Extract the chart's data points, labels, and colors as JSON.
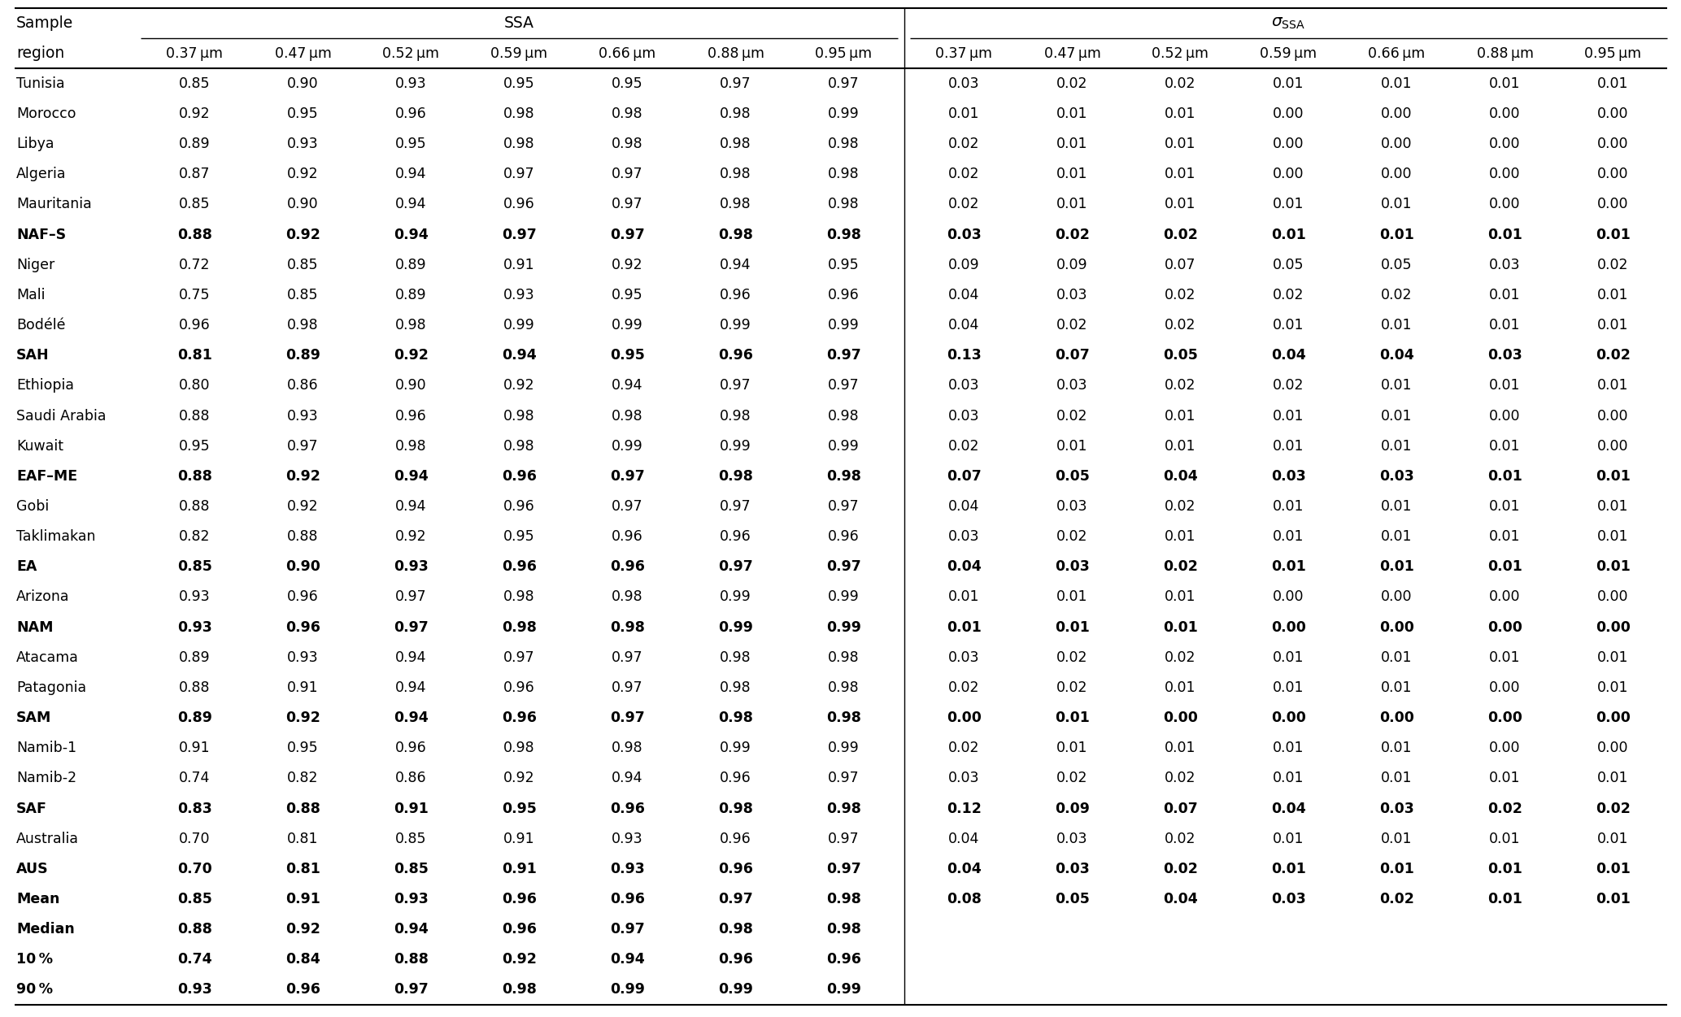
{
  "col_headers_ssa": [
    "0.37 μm",
    "0.47 μm",
    "0.52 μm",
    "0.59 μm",
    "0.66 μm",
    "0.88 μm",
    "0.95 μm"
  ],
  "col_headers_sigma": [
    "0.37 μm",
    "0.47 μm",
    "0.52 μm",
    "0.59 μm",
    "0.66 μm",
    "0.88 μm",
    "0.95 μm"
  ],
  "rows": [
    {
      "region": "Tunisia",
      "bold": false,
      "ssa": [
        0.85,
        0.9,
        0.93,
        0.95,
        0.95,
        0.97,
        0.97
      ],
      "sigma": [
        0.03,
        0.02,
        0.02,
        0.01,
        0.01,
        0.01,
        0.01
      ]
    },
    {
      "region": "Morocco",
      "bold": false,
      "ssa": [
        0.92,
        0.95,
        0.96,
        0.98,
        0.98,
        0.98,
        0.99
      ],
      "sigma": [
        0.01,
        0.01,
        0.01,
        0.0,
        0.0,
        0.0,
        0.0
      ]
    },
    {
      "region": "Libya",
      "bold": false,
      "ssa": [
        0.89,
        0.93,
        0.95,
        0.98,
        0.98,
        0.98,
        0.98
      ],
      "sigma": [
        0.02,
        0.01,
        0.01,
        0.0,
        0.0,
        0.0,
        0.0
      ]
    },
    {
      "region": "Algeria",
      "bold": false,
      "ssa": [
        0.87,
        0.92,
        0.94,
        0.97,
        0.97,
        0.98,
        0.98
      ],
      "sigma": [
        0.02,
        0.01,
        0.01,
        0.0,
        0.0,
        0.0,
        0.0
      ]
    },
    {
      "region": "Mauritania",
      "bold": false,
      "ssa": [
        0.85,
        0.9,
        0.94,
        0.96,
        0.97,
        0.98,
        0.98
      ],
      "sigma": [
        0.02,
        0.01,
        0.01,
        0.01,
        0.01,
        0.0,
        0.0
      ]
    },
    {
      "region": "NAF–S",
      "bold": true,
      "ssa": [
        0.88,
        0.92,
        0.94,
        0.97,
        0.97,
        0.98,
        0.98
      ],
      "sigma": [
        0.03,
        0.02,
        0.02,
        0.01,
        0.01,
        0.01,
        0.01
      ]
    },
    {
      "region": "Niger",
      "bold": false,
      "ssa": [
        0.72,
        0.85,
        0.89,
        0.91,
        0.92,
        0.94,
        0.95
      ],
      "sigma": [
        0.09,
        0.09,
        0.07,
        0.05,
        0.05,
        0.03,
        0.02
      ]
    },
    {
      "region": "Mali",
      "bold": false,
      "ssa": [
        0.75,
        0.85,
        0.89,
        0.93,
        0.95,
        0.96,
        0.96
      ],
      "sigma": [
        0.04,
        0.03,
        0.02,
        0.02,
        0.02,
        0.01,
        0.01
      ]
    },
    {
      "region": "Bodélé",
      "bold": false,
      "ssa": [
        0.96,
        0.98,
        0.98,
        0.99,
        0.99,
        0.99,
        0.99
      ],
      "sigma": [
        0.04,
        0.02,
        0.02,
        0.01,
        0.01,
        0.01,
        0.01
      ]
    },
    {
      "region": "SAH",
      "bold": true,
      "ssa": [
        0.81,
        0.89,
        0.92,
        0.94,
        0.95,
        0.96,
        0.97
      ],
      "sigma": [
        0.13,
        0.07,
        0.05,
        0.04,
        0.04,
        0.03,
        0.02
      ]
    },
    {
      "region": "Ethiopia",
      "bold": false,
      "ssa": [
        0.8,
        0.86,
        0.9,
        0.92,
        0.94,
        0.97,
        0.97
      ],
      "sigma": [
        0.03,
        0.03,
        0.02,
        0.02,
        0.01,
        0.01,
        0.01
      ]
    },
    {
      "region": "Saudi Arabia",
      "bold": false,
      "ssa": [
        0.88,
        0.93,
        0.96,
        0.98,
        0.98,
        0.98,
        0.98
      ],
      "sigma": [
        0.03,
        0.02,
        0.01,
        0.01,
        0.01,
        0.0,
        0.0
      ]
    },
    {
      "region": "Kuwait",
      "bold": false,
      "ssa": [
        0.95,
        0.97,
        0.98,
        0.98,
        0.99,
        0.99,
        0.99
      ],
      "sigma": [
        0.02,
        0.01,
        0.01,
        0.01,
        0.01,
        0.01,
        0.0
      ]
    },
    {
      "region": "EAF–ME",
      "bold": true,
      "ssa": [
        0.88,
        0.92,
        0.94,
        0.96,
        0.97,
        0.98,
        0.98
      ],
      "sigma": [
        0.07,
        0.05,
        0.04,
        0.03,
        0.03,
        0.01,
        0.01
      ]
    },
    {
      "region": "Gobi",
      "bold": false,
      "ssa": [
        0.88,
        0.92,
        0.94,
        0.96,
        0.97,
        0.97,
        0.97
      ],
      "sigma": [
        0.04,
        0.03,
        0.02,
        0.01,
        0.01,
        0.01,
        0.01
      ]
    },
    {
      "region": "Taklimakan",
      "bold": false,
      "ssa": [
        0.82,
        0.88,
        0.92,
        0.95,
        0.96,
        0.96,
        0.96
      ],
      "sigma": [
        0.03,
        0.02,
        0.01,
        0.01,
        0.01,
        0.01,
        0.01
      ]
    },
    {
      "region": "EA",
      "bold": true,
      "ssa": [
        0.85,
        0.9,
        0.93,
        0.96,
        0.96,
        0.97,
        0.97
      ],
      "sigma": [
        0.04,
        0.03,
        0.02,
        0.01,
        0.01,
        0.01,
        0.01
      ]
    },
    {
      "region": "Arizona",
      "bold": false,
      "ssa": [
        0.93,
        0.96,
        0.97,
        0.98,
        0.98,
        0.99,
        0.99
      ],
      "sigma": [
        0.01,
        0.01,
        0.01,
        0.0,
        0.0,
        0.0,
        0.0
      ]
    },
    {
      "region": "NAM",
      "bold": true,
      "ssa": [
        0.93,
        0.96,
        0.97,
        0.98,
        0.98,
        0.99,
        0.99
      ],
      "sigma": [
        0.01,
        0.01,
        0.01,
        0.0,
        0.0,
        0.0,
        0.0
      ]
    },
    {
      "region": "Atacama",
      "bold": false,
      "ssa": [
        0.89,
        0.93,
        0.94,
        0.97,
        0.97,
        0.98,
        0.98
      ],
      "sigma": [
        0.03,
        0.02,
        0.02,
        0.01,
        0.01,
        0.01,
        0.01
      ]
    },
    {
      "region": "Patagonia",
      "bold": false,
      "ssa": [
        0.88,
        0.91,
        0.94,
        0.96,
        0.97,
        0.98,
        0.98
      ],
      "sigma": [
        0.02,
        0.02,
        0.01,
        0.01,
        0.01,
        0.0,
        0.01
      ]
    },
    {
      "region": "SAM",
      "bold": true,
      "ssa": [
        0.89,
        0.92,
        0.94,
        0.96,
        0.97,
        0.98,
        0.98
      ],
      "sigma": [
        0.0,
        0.01,
        0.0,
        0.0,
        0.0,
        0.0,
        0.0
      ]
    },
    {
      "region": "Namib-1",
      "bold": false,
      "ssa": [
        0.91,
        0.95,
        0.96,
        0.98,
        0.98,
        0.99,
        0.99
      ],
      "sigma": [
        0.02,
        0.01,
        0.01,
        0.01,
        0.01,
        0.0,
        0.0
      ]
    },
    {
      "region": "Namib-2",
      "bold": false,
      "ssa": [
        0.74,
        0.82,
        0.86,
        0.92,
        0.94,
        0.96,
        0.97
      ],
      "sigma": [
        0.03,
        0.02,
        0.02,
        0.01,
        0.01,
        0.01,
        0.01
      ]
    },
    {
      "region": "SAF",
      "bold": true,
      "ssa": [
        0.83,
        0.88,
        0.91,
        0.95,
        0.96,
        0.98,
        0.98
      ],
      "sigma": [
        0.12,
        0.09,
        0.07,
        0.04,
        0.03,
        0.02,
        0.02
      ]
    },
    {
      "region": "Australia",
      "bold": false,
      "ssa": [
        0.7,
        0.81,
        0.85,
        0.91,
        0.93,
        0.96,
        0.97
      ],
      "sigma": [
        0.04,
        0.03,
        0.02,
        0.01,
        0.01,
        0.01,
        0.01
      ]
    },
    {
      "region": "AUS",
      "bold": true,
      "ssa": [
        0.7,
        0.81,
        0.85,
        0.91,
        0.93,
        0.96,
        0.97
      ],
      "sigma": [
        0.04,
        0.03,
        0.02,
        0.01,
        0.01,
        0.01,
        0.01
      ]
    },
    {
      "region": "Mean",
      "bold": true,
      "ssa": [
        0.85,
        0.91,
        0.93,
        0.96,
        0.96,
        0.97,
        0.98
      ],
      "sigma": [
        0.08,
        0.05,
        0.04,
        0.03,
        0.02,
        0.01,
        0.01
      ]
    },
    {
      "region": "Median",
      "bold": true,
      "ssa": [
        0.88,
        0.92,
        0.94,
        0.96,
        0.97,
        0.98,
        0.98
      ],
      "sigma": null
    },
    {
      "region": "10 %",
      "bold": true,
      "ssa": [
        0.74,
        0.84,
        0.88,
        0.92,
        0.94,
        0.96,
        0.96
      ],
      "sigma": null
    },
    {
      "region": "90 %",
      "bold": true,
      "ssa": [
        0.93,
        0.96,
        0.97,
        0.98,
        0.99,
        0.99,
        0.99
      ],
      "sigma": null
    }
  ],
  "fig_width": 20.67,
  "fig_height": 12.51,
  "dpi": 100
}
